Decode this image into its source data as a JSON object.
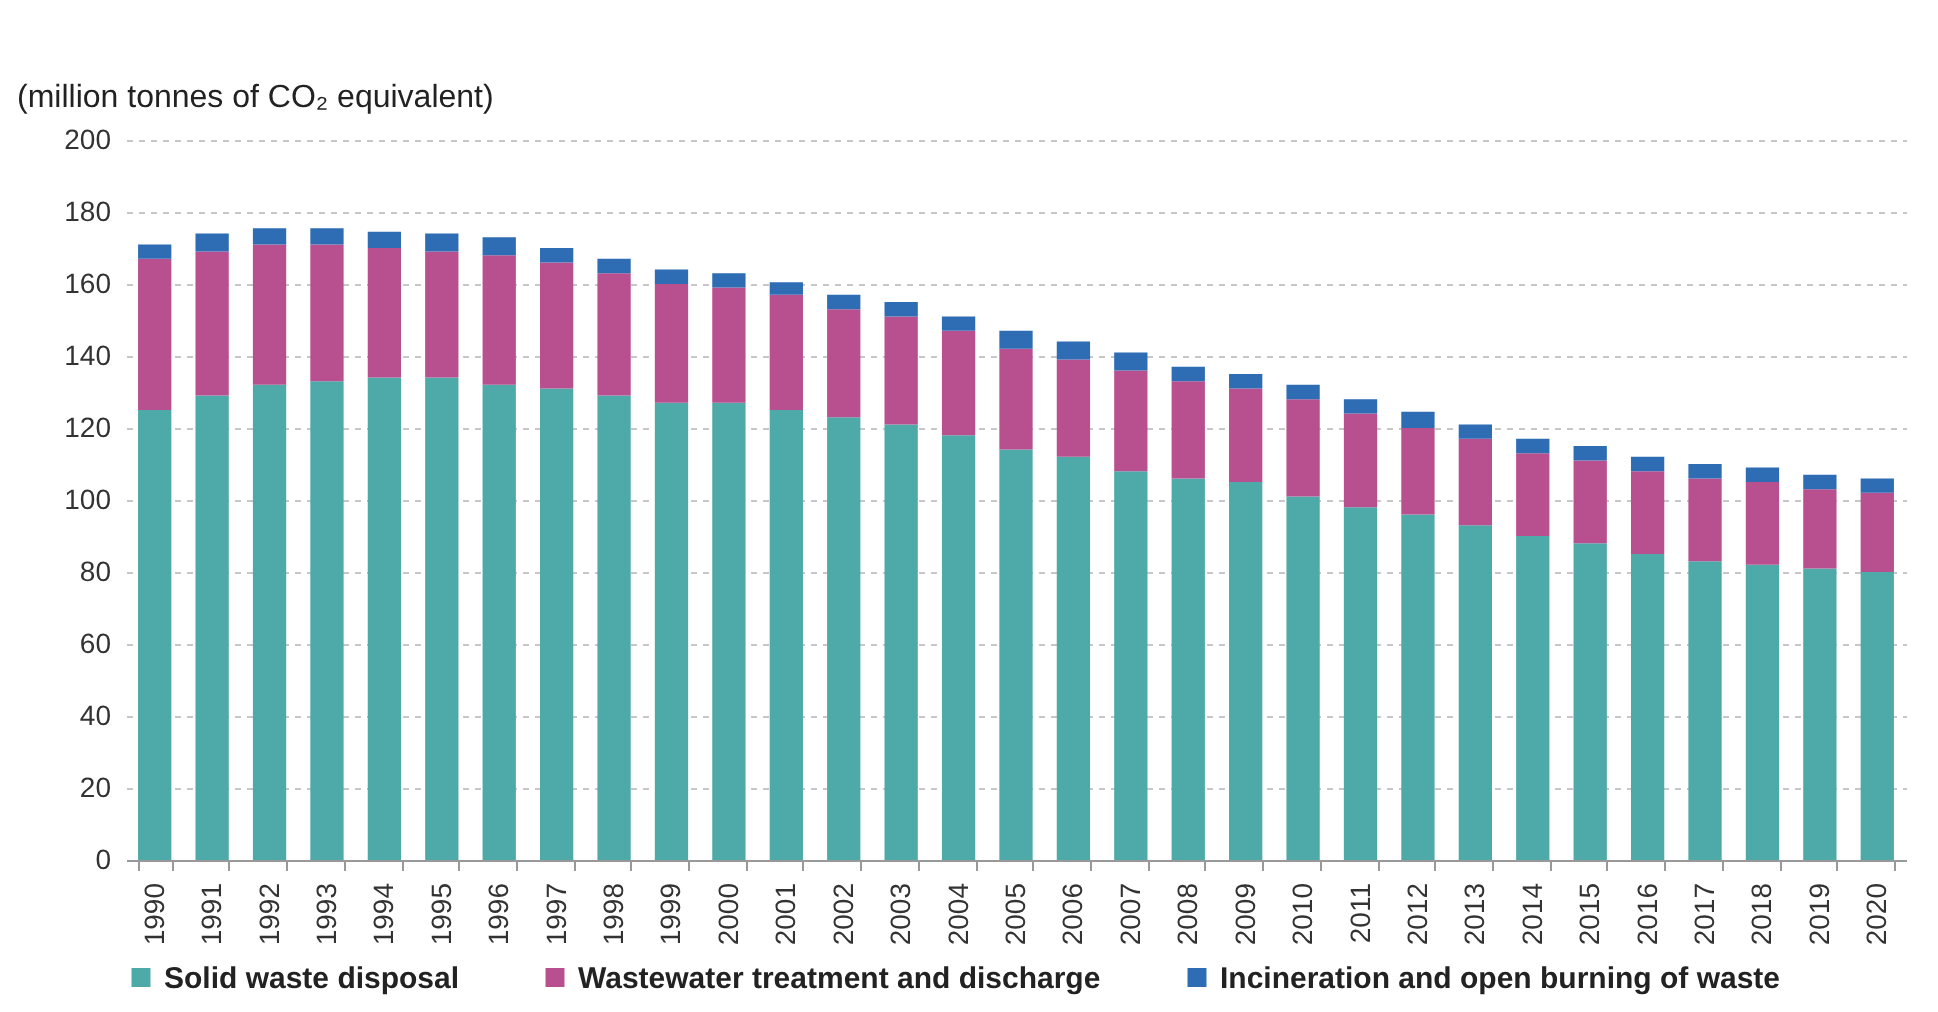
{
  "chart_data": {
    "type": "bar",
    "stacked": true,
    "ylabel": "(million tonnes of CO₂ equivalent)",
    "categories": [
      "1990",
      "1991",
      "1992",
      "1993",
      "1994",
      "1995",
      "1996",
      "1997",
      "1998",
      "1999",
      "2000",
      "2001",
      "2002",
      "2003",
      "2004",
      "2005",
      "2006",
      "2007",
      "2008",
      "2009",
      "2010",
      "2011",
      "2012",
      "2013",
      "2014",
      "2015",
      "2016",
      "2017",
      "2018",
      "2019",
      "2020"
    ],
    "series": [
      {
        "name": "Solid waste disposal",
        "color": "#4eaaa8",
        "values": [
          125,
          129,
          132,
          133,
          134,
          134,
          132,
          131,
          129,
          127,
          127,
          125,
          123,
          121,
          118,
          114,
          112,
          108,
          106,
          105,
          101,
          98,
          96,
          93,
          90,
          88,
          85,
          83,
          82,
          81,
          80
        ]
      },
      {
        "name": "Wastewater treatment and discharge",
        "color": "#b8508f",
        "values": [
          42,
          40,
          39,
          38,
          36,
          35,
          36,
          35,
          34,
          33,
          32,
          32,
          30,
          30,
          29,
          28,
          27,
          28,
          27,
          26,
          27,
          26,
          24,
          24,
          23,
          23,
          23,
          23,
          23,
          22,
          22
        ]
      },
      {
        "name": "Incineration and open burning of waste",
        "color": "#2e6db4",
        "values": [
          4,
          5,
          4.5,
          4.5,
          4.5,
          5,
          5,
          4,
          4,
          4,
          4,
          3.5,
          4,
          4,
          4,
          5,
          5,
          5,
          4,
          4,
          4,
          4,
          4.5,
          4,
          4,
          4,
          4,
          4,
          4,
          4,
          4
        ]
      }
    ],
    "ylim": [
      0,
      200
    ],
    "yticks": [
      0,
      20,
      40,
      60,
      80,
      100,
      120,
      140,
      160,
      180,
      200
    ],
    "grid": "y",
    "legend": "bottom"
  }
}
